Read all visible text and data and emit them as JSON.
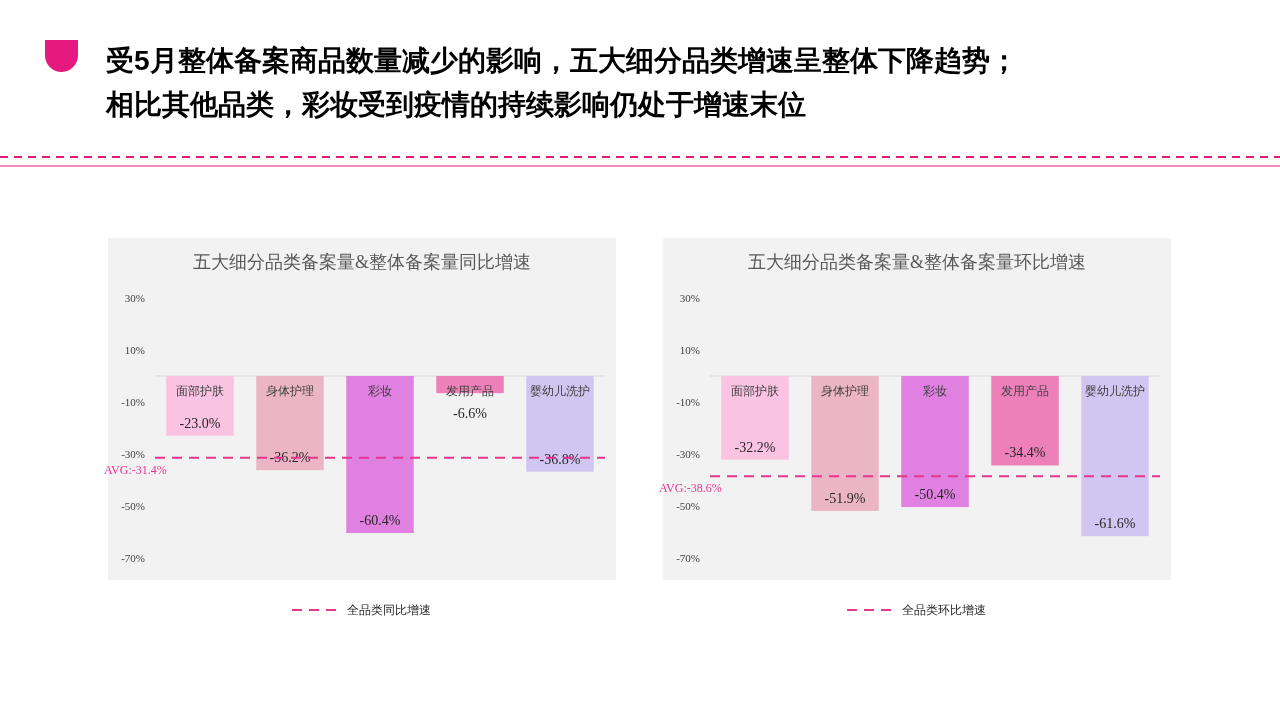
{
  "chart_data": [
    {
      "type": "bar",
      "title": "五大细分品类备案量&整体备案量同比增速",
      "categories": [
        "面部护肤",
        "身体护理",
        "彩妆",
        "发用产品",
        "婴幼儿洗护"
      ],
      "series": [
        {
          "colors": [
            "#f9c3e1",
            "#ecb5c6",
            "#e080e0",
            "#ee80b9",
            "#d0c6f1"
          ],
          "values": [
            -23.0,
            -36.2,
            -60.4,
            -6.6,
            -36.8
          ],
          "value_labels": [
            "-23.0%",
            "-36.2%",
            "-60.4%",
            "-6.6%",
            "-36.8%"
          ]
        }
      ],
      "ref_lines": [
        {
          "axis": "y",
          "value": -31.4,
          "label": "AVG:-31.4%",
          "color": "#e8358f",
          "line_style": "dashed"
        }
      ],
      "ylim": [
        -70,
        30
      ],
      "yticks": [
        {
          "value": 30,
          "label": "30%"
        },
        {
          "value": 10,
          "label": "10%"
        },
        {
          "value": -10,
          "label": "-10%"
        },
        {
          "value": -30,
          "label": "-30%"
        },
        {
          "value": -50,
          "label": "-50%"
        },
        {
          "value": -70,
          "label": "-70%"
        }
      ],
      "legend": "bottom",
      "annotations": [
        "受5月整体备案商品数量减少的影响，五大细分品类增速呈整体下降趋势；",
        "相比其他品类，彩妆受到疫情的持续影响仍处于增速末位",
        "全品类同比增速"
      ]
    },
    {
      "type": "bar",
      "title": "五大细分品类备案量&整体备案量环比增速",
      "categories": [
        "面部护肤",
        "身体护理",
        "彩妆",
        "发用产品",
        "婴幼儿洗护"
      ],
      "series": [
        {
          "colors": [
            "#f9c3e1",
            "#ecb5c6",
            "#e080e0",
            "#ee80b9",
            "#d0c6f1"
          ],
          "values": [
            -32.2,
            -51.9,
            -50.4,
            -34.4,
            -61.6
          ],
          "value_labels": [
            "-32.2%",
            "-51.9%",
            "-50.4%",
            "-34.4%",
            "-61.6%"
          ]
        }
      ],
      "ref_lines": [
        {
          "axis": "y",
          "value": -38.6,
          "label": "AVG:-38.6%",
          "color": "#e8358f",
          "line_style": "dashed"
        }
      ],
      "ylim": [
        -70,
        30
      ],
      "yticks": [
        {
          "value": 30,
          "label": "30%"
        },
        {
          "value": 10,
          "label": "10%"
        },
        {
          "value": -10,
          "label": "-10%"
        },
        {
          "value": -30,
          "label": "-30%"
        },
        {
          "value": -50,
          "label": "-50%"
        },
        {
          "value": -70,
          "label": "-70%"
        }
      ],
      "legend": "bottom",
      "annotations": [
        "全品类环比增速"
      ]
    }
  ]
}
